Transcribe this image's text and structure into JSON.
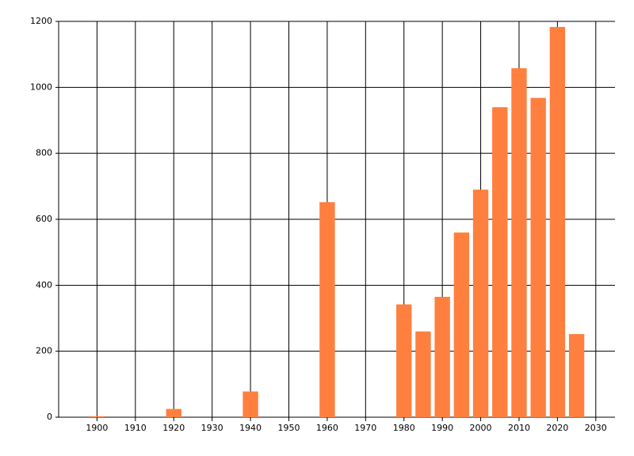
{
  "chart_data": {
    "type": "bar",
    "x": [
      1900,
      1920,
      1940,
      1960,
      1980,
      1985,
      1990,
      1995,
      2000,
      2005,
      2010,
      2015,
      2020,
      2025
    ],
    "values": [
      3,
      25,
      78,
      652,
      342,
      260,
      365,
      560,
      690,
      940,
      1058,
      968,
      1183,
      252
    ],
    "color": "#ff7f3f",
    "xlim": [
      1890,
      2035
    ],
    "xticks": [
      1900,
      1910,
      1920,
      1930,
      1940,
      1950,
      1960,
      1970,
      1980,
      1990,
      2000,
      2010,
      2020,
      2030
    ],
    "ylim": [
      0,
      1200
    ],
    "yticks": [
      0,
      200,
      400,
      600,
      800,
      1000,
      1200
    ],
    "grid": true
  }
}
